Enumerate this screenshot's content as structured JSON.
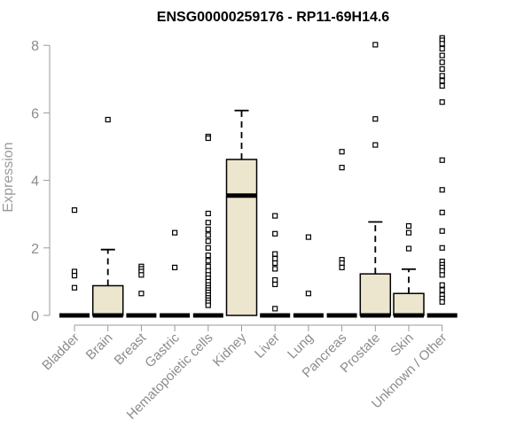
{
  "chart_data": {
    "type": "box",
    "title": "ENSG00000259176 - RP11-69H14.6",
    "xlabel": "",
    "ylabel": "Expression",
    "ylim": [
      0,
      8.3
    ],
    "yticks": [
      0,
      2,
      4,
      6,
      8
    ],
    "box_fill": "#ece6cf",
    "categories": [
      "Bladder",
      "Brain",
      "Breast",
      "Gastric",
      "Hematopoietic cells",
      "Kidney",
      "Liver",
      "Lung",
      "Pancreas",
      "Prostate",
      "Skin",
      "Unknown / Other"
    ],
    "boxes": [
      {
        "q1": 0,
        "median": 0,
        "q3": 0,
        "whisker_low": 0,
        "whisker_high": 0,
        "outliers": [
          3.12,
          1.3,
          1.18,
          0.82
        ]
      },
      {
        "q1": 0,
        "median": 0,
        "q3": 0.88,
        "whisker_low": 0,
        "whisker_high": 1.95,
        "outliers": [
          5.8
        ]
      },
      {
        "q1": 0,
        "median": 0,
        "q3": 0,
        "whisker_low": 0,
        "whisker_high": 0,
        "outliers": [
          1.45,
          1.38,
          1.3,
          1.2,
          0.65
        ]
      },
      {
        "q1": 0,
        "median": 0,
        "q3": 0,
        "whisker_low": 0,
        "whisker_high": 0,
        "outliers": [
          2.45,
          1.42
        ]
      },
      {
        "q1": 0,
        "median": 0,
        "q3": 0,
        "whisker_low": 0,
        "whisker_high": 0,
        "outliers": [
          5.3,
          5.25,
          3.02,
          2.75,
          2.55,
          2.38,
          2.2,
          2.0,
          1.78,
          1.62,
          1.45,
          1.32,
          1.2,
          1.1,
          1.0,
          0.9,
          0.82,
          0.75,
          0.68,
          0.6,
          0.52,
          0.45,
          0.38,
          0.3
        ]
      },
      {
        "q1": 0,
        "median": 3.55,
        "q3": 4.62,
        "whisker_low": 0,
        "whisker_high": 6.07,
        "outliers": []
      },
      {
        "q1": 0,
        "median": 0,
        "q3": 0,
        "whisker_low": 0,
        "whisker_high": 0,
        "outliers": [
          2.95,
          2.42,
          1.82,
          1.68,
          1.55,
          1.38,
          1.05,
          0.92,
          0.2
        ]
      },
      {
        "q1": 0,
        "median": 0,
        "q3": 0,
        "whisker_low": 0,
        "whisker_high": 0,
        "outliers": [
          2.32,
          0.65
        ]
      },
      {
        "q1": 0,
        "median": 0,
        "q3": 0,
        "whisker_low": 0,
        "whisker_high": 0,
        "outliers": [
          4.85,
          4.38,
          1.65,
          1.55,
          1.42
        ]
      },
      {
        "q1": 0,
        "median": 0,
        "q3": 1.23,
        "whisker_low": 0,
        "whisker_high": 2.77,
        "outliers": [
          8.02,
          5.82,
          5.05
        ]
      },
      {
        "q1": 0,
        "median": 0,
        "q3": 0.65,
        "whisker_low": 0,
        "whisker_high": 1.37,
        "outliers": [
          2.65,
          2.45,
          1.98
        ]
      },
      {
        "q1": 0,
        "median": 0,
        "q3": 0,
        "whisker_low": 0,
        "whisker_high": 0,
        "outliers": [
          8.22,
          8.15,
          8.05,
          7.9,
          7.7,
          7.5,
          7.3,
          7.1,
          6.95,
          6.8,
          6.32,
          4.6,
          3.72,
          3.05,
          2.5,
          2.0,
          1.6,
          1.5,
          1.42,
          1.32,
          1.2,
          0.9,
          0.75,
          0.6,
          0.5,
          0.4
        ]
      }
    ]
  }
}
